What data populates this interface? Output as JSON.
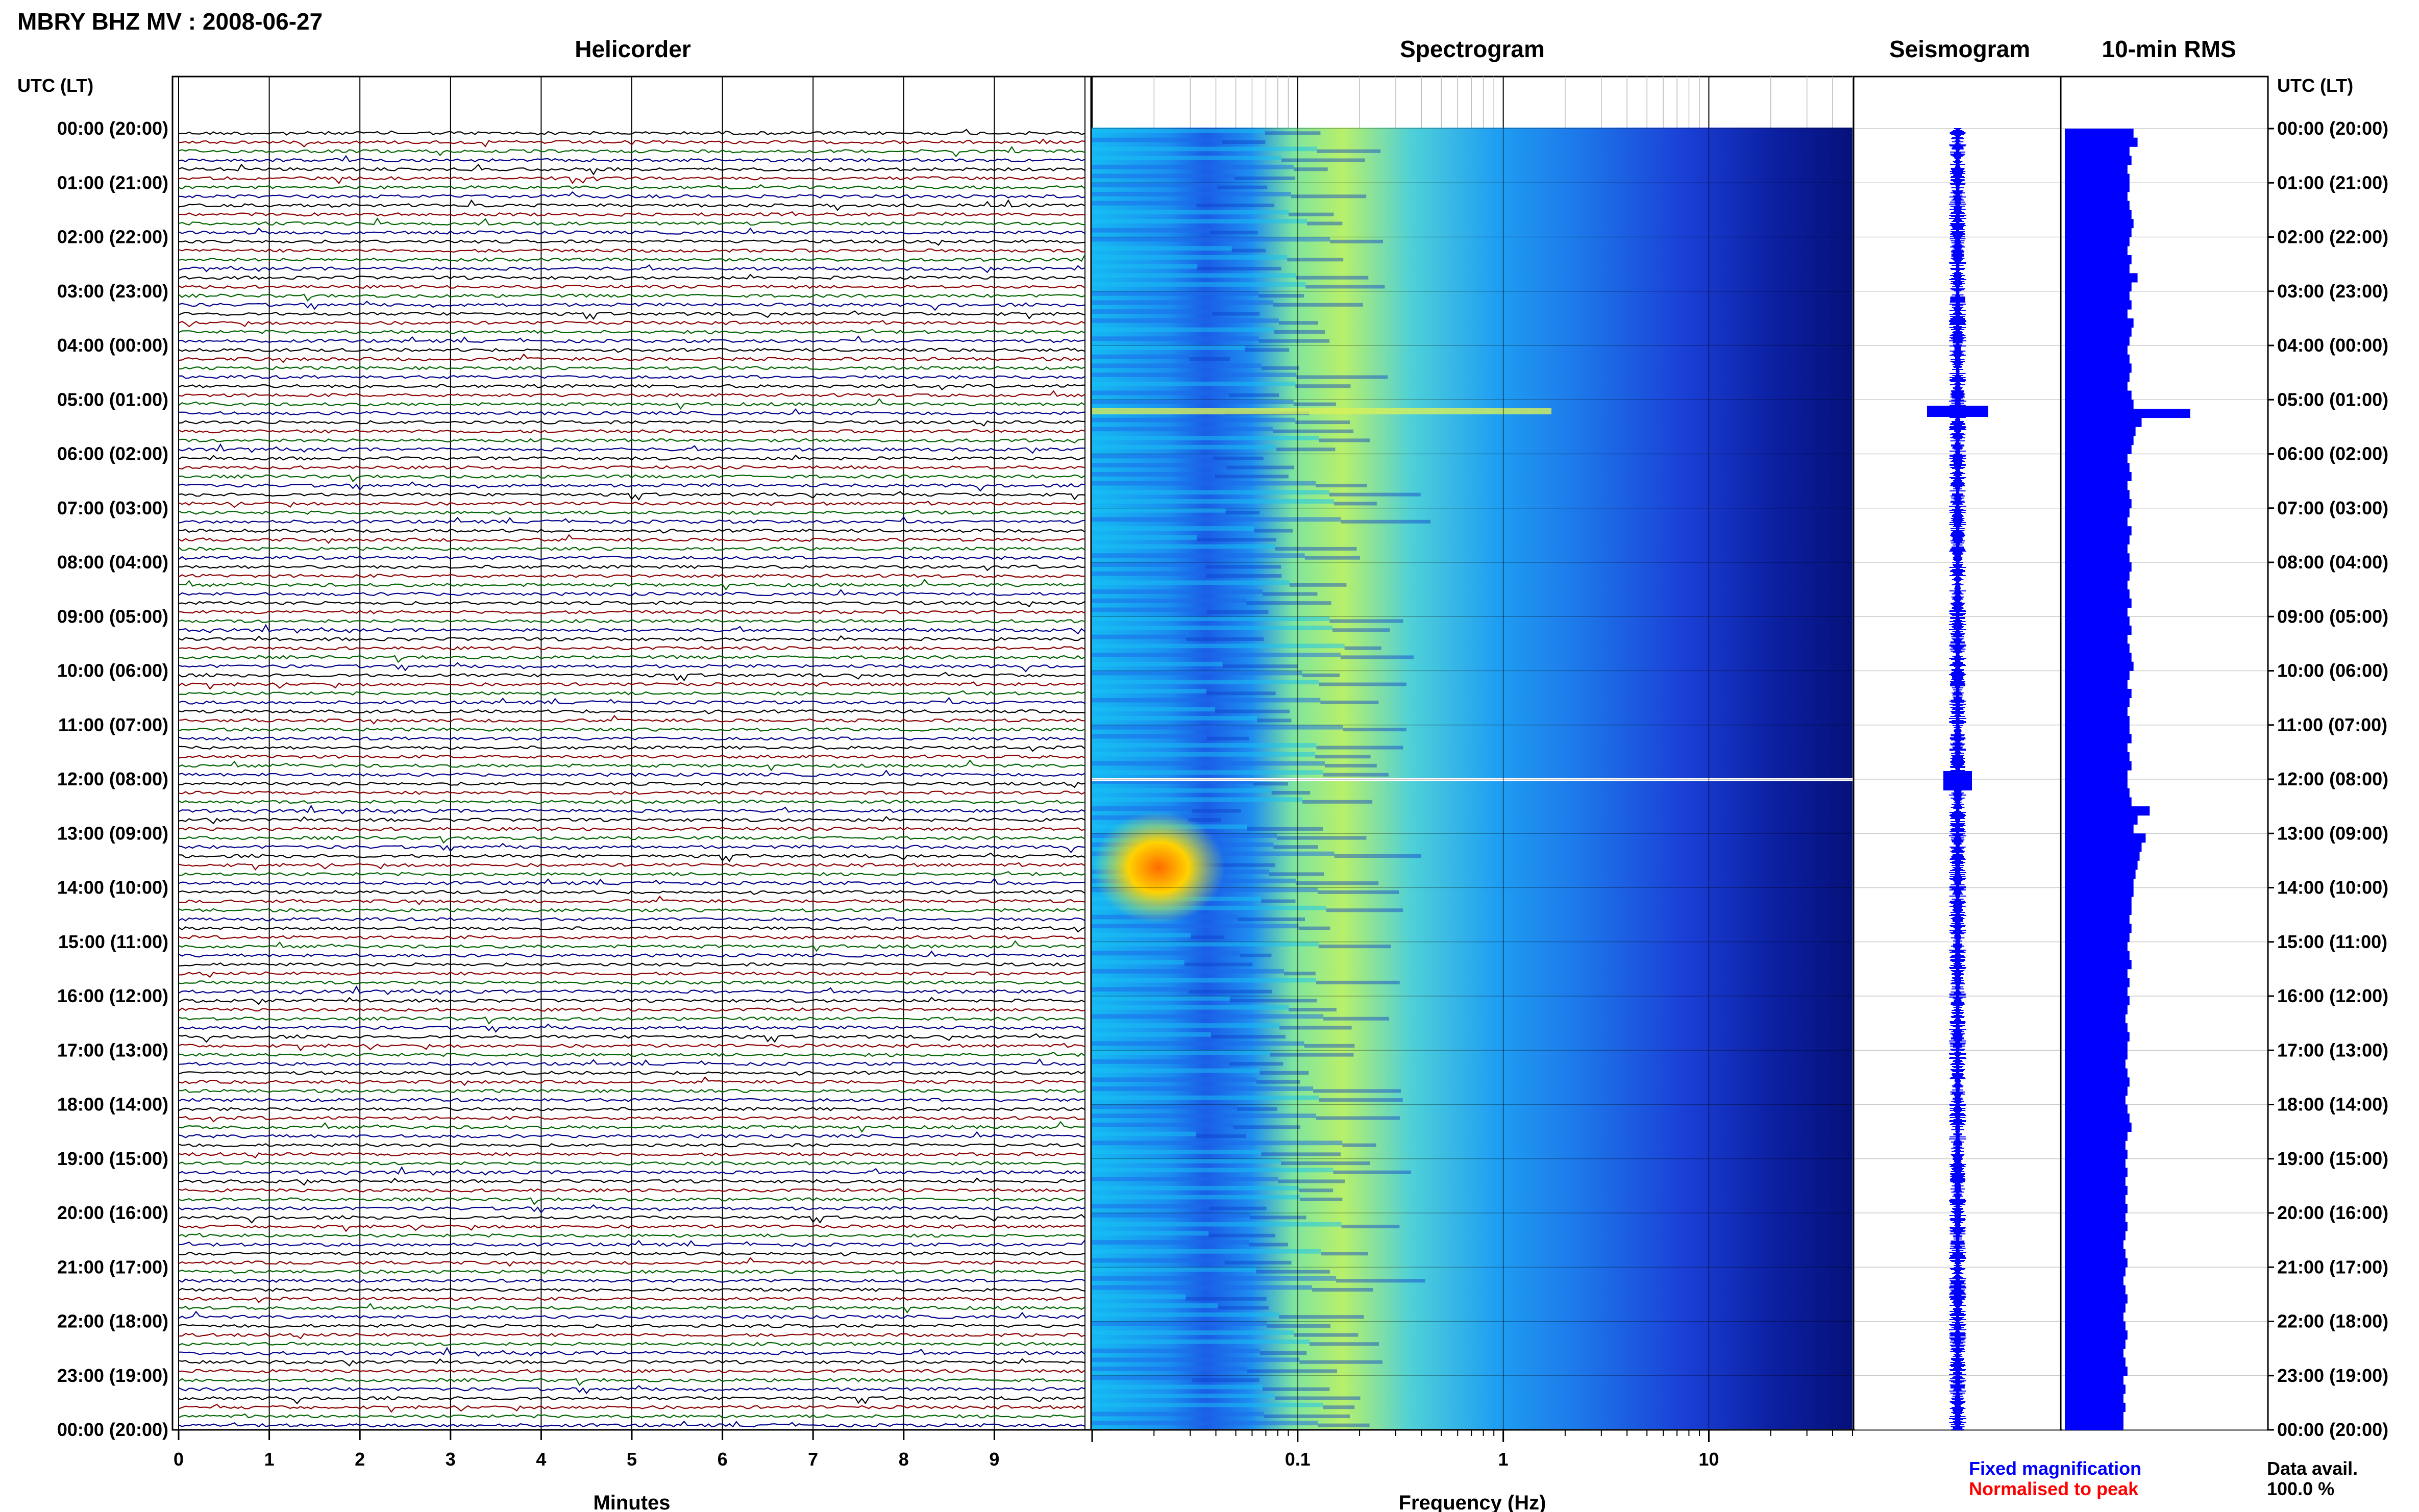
{
  "title": "MBRY BHZ MV : 2008-06-27",
  "panels": {
    "helicorder": "Helicorder",
    "spectrogram": "Spectrogram",
    "seismogram": "Seismogram",
    "rms": "10-min RMS"
  },
  "time_axis_label": "UTC (LT)",
  "legend": {
    "fixed": "Fixed magnification",
    "normalised": "Normalised to peak",
    "fixed_color": "#0000ff",
    "normalised_color": "#ff0000"
  },
  "data_avail": {
    "label": "Data avail.",
    "value": "100.0 %"
  },
  "colors": {
    "trace_cycle": [
      "#000000",
      "#8b0000",
      "#006400",
      "#00008b"
    ],
    "rms_fill": "#0000ff",
    "seismogram_trace": "#0000ff",
    "spectrogram_colormap": "jet"
  },
  "chart_data": [
    {
      "type": "line",
      "panel": "helicorder",
      "title": "Helicorder",
      "xlabel": "Minutes",
      "x_ticks": [
        "0",
        "1",
        "2",
        "3",
        "4",
        "5",
        "6",
        "7",
        "8",
        "9"
      ],
      "xlim": [
        0,
        10
      ],
      "rows_per_hour": 6,
      "row_minutes": 10,
      "y_labels": [
        "00:00 (20:00)",
        "01:00 (21:00)",
        "02:00 (22:00)",
        "03:00 (23:00)",
        "04:00 (00:00)",
        "05:00 (01:00)",
        "06:00 (02:00)",
        "07:00 (03:00)",
        "08:00 (04:00)",
        "09:00 (05:00)",
        "10:00 (06:00)",
        "11:00 (07:00)",
        "12:00 (08:00)",
        "13:00 (09:00)",
        "14:00 (10:00)",
        "15:00 (11:00)",
        "16:00 (12:00)",
        "17:00 (13:00)",
        "18:00 (14:00)",
        "19:00 (15:00)",
        "20:00 (16:00)",
        "21:00 (17:00)",
        "22:00 (18:00)",
        "23:00 (19:00)",
        "00:00 (20:00)"
      ]
    },
    {
      "type": "heatmap",
      "panel": "spectrogram",
      "title": "Spectrogram",
      "xlabel": "Frequency (Hz)",
      "x_scale": "log",
      "x_ticks": [
        "0.1",
        "1",
        "10"
      ],
      "xlim": [
        0.01,
        50
      ]
    },
    {
      "type": "line",
      "panel": "seismogram",
      "title": "Seismogram"
    },
    {
      "type": "bar",
      "panel": "rms",
      "title": "10-min RMS",
      "orientation": "horizontal",
      "y_labels": [
        "00:00 (20:00)",
        "01:00 (21:00)",
        "02:00 (22:00)",
        "03:00 (23:00)",
        "04:00 (00:00)",
        "05:00 (01:00)",
        "06:00 (02:00)",
        "07:00 (03:00)",
        "08:00 (04:00)",
        "09:00 (05:00)",
        "10:00 (06:00)",
        "11:00 (07:00)",
        "12:00 (08:00)",
        "13:00 (09:00)",
        "14:00 (10:00)",
        "15:00 (11:00)",
        "16:00 (12:00)",
        "17:00 (13:00)",
        "18:00 (14:00)",
        "19:00 (15:00)",
        "20:00 (16:00)",
        "21:00 (17:00)",
        "22:00 (18:00)",
        "23:00 (19:00)",
        "00:00 (20:00)"
      ],
      "values_relative": [
        0.34,
        0.36,
        0.32,
        0.33,
        0.31,
        0.32,
        0.32,
        0.31,
        0.32,
        0.33,
        0.34,
        0.33,
        0.32,
        0.31,
        0.33,
        0.32,
        0.36,
        0.33,
        0.32,
        0.33,
        0.31,
        0.34,
        0.33,
        0.32,
        0.31,
        0.32,
        0.33,
        0.32,
        0.31,
        0.33,
        0.34,
        0.62,
        0.38,
        0.35,
        0.34,
        0.33,
        0.31,
        0.32,
        0.33,
        0.31,
        0.32,
        0.33,
        0.32,
        0.31,
        0.33,
        0.32,
        0.31,
        0.32,
        0.33,
        0.32,
        0.31,
        0.32,
        0.33,
        0.31,
        0.32,
        0.33,
        0.31,
        0.32,
        0.33,
        0.34,
        0.32,
        0.31,
        0.33,
        0.32,
        0.31,
        0.32,
        0.32,
        0.33,
        0.31,
        0.32,
        0.33,
        0.31,
        0.31,
        0.32,
        0.33,
        0.42,
        0.36,
        0.34,
        0.4,
        0.38,
        0.37,
        0.36,
        0.35,
        0.34,
        0.34,
        0.33,
        0.33,
        0.32,
        0.33,
        0.32,
        0.31,
        0.32,
        0.33,
        0.31,
        0.32,
        0.31,
        0.32,
        0.31,
        0.3,
        0.31,
        0.32,
        0.31,
        0.31,
        0.3,
        0.31,
        0.32,
        0.31,
        0.3,
        0.31,
        0.32,
        0.33,
        0.31,
        0.3,
        0.31,
        0.3,
        0.31,
        0.3,
        0.31,
        0.3,
        0.31,
        0.3,
        0.31,
        0.3,
        0.29,
        0.3,
        0.31,
        0.3,
        0.29,
        0.3,
        0.31,
        0.3,
        0.29,
        0.3,
        0.31,
        0.3,
        0.29,
        0.3,
        0.31,
        0.29,
        0.3,
        0.29,
        0.3,
        0.29,
        0.29
      ]
    }
  ]
}
